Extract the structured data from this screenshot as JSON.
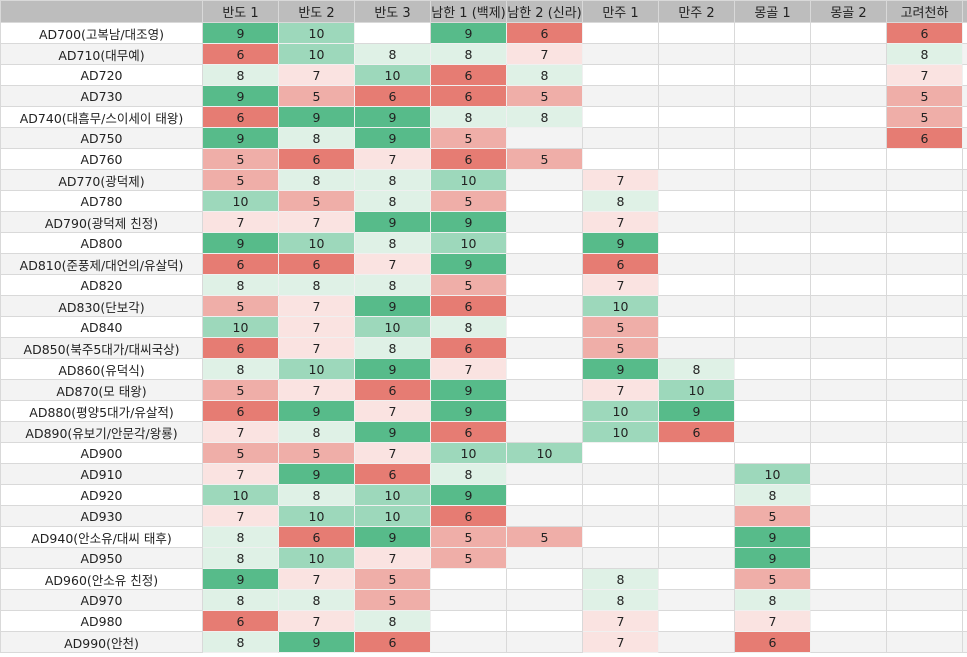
{
  "headers": [
    "",
    "반도 1",
    "반도 2",
    "반도 3",
    "남한 1 (백제)",
    "남한 2 (신라)",
    "만주 1",
    "만주 2",
    "몽골 1",
    "몽골 2",
    "고려천하"
  ],
  "color_scale": {
    "5": "#efaea8",
    "6": "#e67c73",
    "7": "#fae3e1",
    "8": "#dff1e6",
    "9": "#57bb8a",
    "10": "#9dd8bb"
  },
  "rows": [
    {
      "label": "AD700(고복남/대조영)",
      "values": [
        9,
        10,
        null,
        9,
        6,
        null,
        null,
        null,
        null,
        6
      ]
    },
    {
      "label": "AD710(대무예)",
      "values": [
        6,
        10,
        8,
        8,
        7,
        null,
        null,
        null,
        null,
        8
      ]
    },
    {
      "label": "AD720",
      "values": [
        8,
        7,
        10,
        6,
        8,
        null,
        null,
        null,
        null,
        7
      ]
    },
    {
      "label": "AD730",
      "values": [
        9,
        5,
        6,
        6,
        5,
        null,
        null,
        null,
        null,
        5
      ]
    },
    {
      "label": "AD740(대흠무/스이세이 태왕)",
      "values": [
        6,
        9,
        9,
        8,
        8,
        null,
        null,
        null,
        null,
        5
      ]
    },
    {
      "label": "AD750",
      "values": [
        9,
        8,
        9,
        5,
        null,
        null,
        null,
        null,
        null,
        6
      ]
    },
    {
      "label": "AD760",
      "values": [
        5,
        6,
        7,
        6,
        5,
        null,
        null,
        null,
        null,
        null
      ]
    },
    {
      "label": "AD770(광덕제)",
      "values": [
        5,
        8,
        8,
        10,
        null,
        7,
        null,
        null,
        null,
        null
      ]
    },
    {
      "label": "AD780",
      "values": [
        10,
        5,
        8,
        5,
        null,
        8,
        null,
        null,
        null,
        null
      ]
    },
    {
      "label": "AD790(광덕제 친정)",
      "values": [
        7,
        7,
        9,
        9,
        null,
        7,
        null,
        null,
        null,
        null
      ]
    },
    {
      "label": "AD800",
      "values": [
        9,
        10,
        8,
        10,
        null,
        9,
        null,
        null,
        null,
        null
      ]
    },
    {
      "label": "AD810(준풍제/대언의/유살덕)",
      "values": [
        6,
        6,
        7,
        9,
        null,
        6,
        null,
        null,
        null,
        null
      ]
    },
    {
      "label": "AD820",
      "values": [
        8,
        8,
        8,
        5,
        null,
        7,
        null,
        null,
        null,
        null
      ]
    },
    {
      "label": "AD830(단보각)",
      "values": [
        5,
        7,
        9,
        6,
        null,
        10,
        null,
        null,
        null,
        null
      ]
    },
    {
      "label": "AD840",
      "values": [
        10,
        7,
        10,
        8,
        null,
        5,
        null,
        null,
        null,
        null
      ]
    },
    {
      "label": "AD850(북주5대가/대씨국상)",
      "values": [
        6,
        7,
        8,
        6,
        null,
        5,
        null,
        null,
        null,
        null
      ]
    },
    {
      "label": "AD860(유덕식)",
      "values": [
        8,
        10,
        9,
        7,
        null,
        9,
        8,
        null,
        null,
        null
      ]
    },
    {
      "label": "AD870(모 태왕)",
      "values": [
        5,
        7,
        6,
        9,
        null,
        7,
        10,
        null,
        null,
        null
      ]
    },
    {
      "label": "AD880(평양5대가/유살적)",
      "values": [
        6,
        9,
        7,
        9,
        null,
        10,
        9,
        null,
        null,
        null
      ]
    },
    {
      "label": "AD890(유보기/안문각/왕룡)",
      "values": [
        7,
        8,
        9,
        6,
        null,
        10,
        6,
        null,
        null,
        null
      ]
    },
    {
      "label": "AD900",
      "values": [
        5,
        5,
        7,
        10,
        10,
        null,
        null,
        null,
        null,
        null
      ]
    },
    {
      "label": "AD910",
      "values": [
        7,
        9,
        6,
        8,
        null,
        null,
        null,
        10,
        null,
        null
      ]
    },
    {
      "label": "AD920",
      "values": [
        10,
        8,
        10,
        9,
        null,
        null,
        null,
        8,
        null,
        null
      ]
    },
    {
      "label": "AD930",
      "values": [
        7,
        10,
        10,
        6,
        null,
        null,
        null,
        5,
        null,
        null
      ]
    },
    {
      "label": "AD940(안소유/대씨 태후)",
      "values": [
        8,
        6,
        9,
        5,
        5,
        null,
        null,
        9,
        null,
        null
      ]
    },
    {
      "label": "AD950",
      "values": [
        8,
        10,
        7,
        5,
        null,
        null,
        null,
        9,
        null,
        null
      ]
    },
    {
      "label": "AD960(안소유 친정)",
      "values": [
        9,
        7,
        5,
        null,
        null,
        8,
        null,
        5,
        null,
        null
      ]
    },
    {
      "label": "AD970",
      "values": [
        8,
        8,
        5,
        null,
        null,
        8,
        null,
        8,
        null,
        null
      ]
    },
    {
      "label": "AD980",
      "values": [
        6,
        7,
        8,
        null,
        null,
        7,
        null,
        7,
        null,
        null
      ]
    },
    {
      "label": "AD990(안천)",
      "values": [
        8,
        9,
        6,
        null,
        null,
        7,
        null,
        6,
        null,
        null
      ]
    }
  ]
}
